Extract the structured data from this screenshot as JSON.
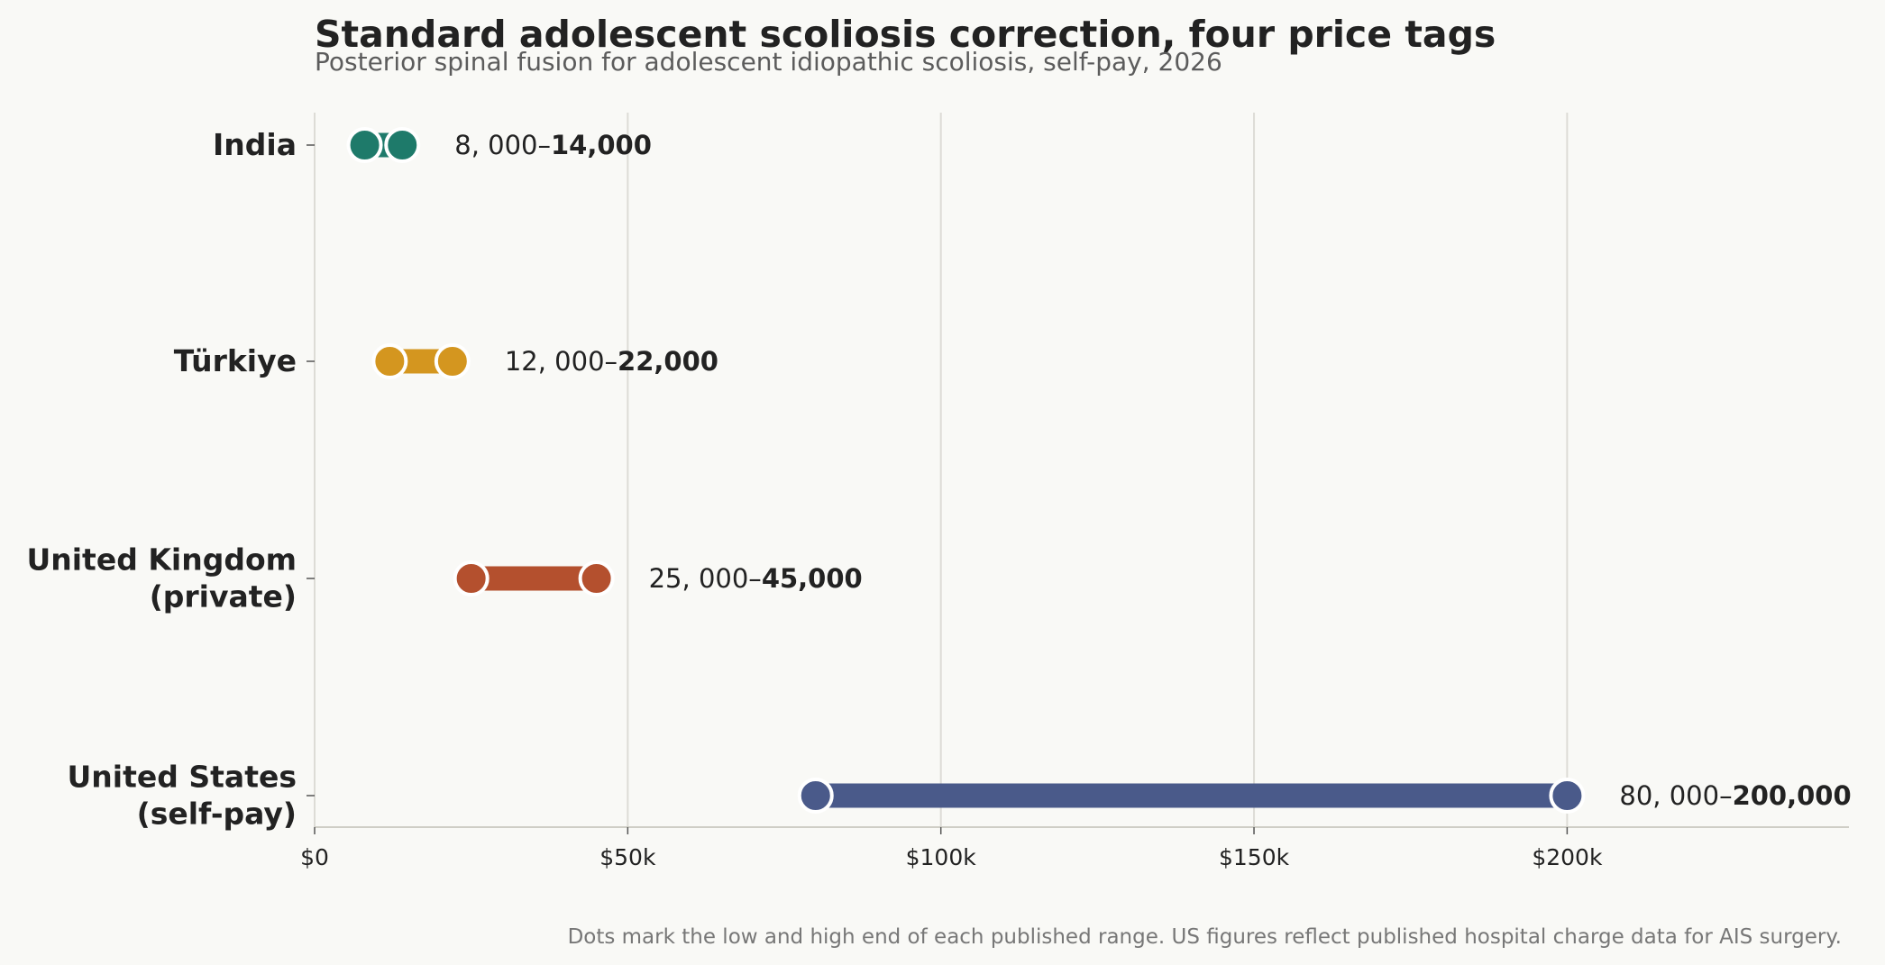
{
  "chart_data": {
    "type": "dumbbell",
    "title": "Standard adolescent scoliosis correction, four price tags",
    "subtitle": "Posterior spinal fusion for adolescent idiopathic scoliosis, self-pay, 2026",
    "footnote": "Dots mark the low and high end of each published range. US figures reflect published hospital charge data for AIS surgery.",
    "xlim": [
      0,
      245000
    ],
    "x_ticks": [
      0,
      50000,
      100000,
      150000,
      200000
    ],
    "x_tick_labels": [
      "$0",
      "$50k",
      "$100k",
      "$150k",
      "$200k"
    ],
    "grid": "vertical",
    "categories": [
      {
        "label": [
          "India"
        ],
        "low": 8000,
        "high": 14000,
        "color": "#1e7a6a",
        "range_text_low": "8, 000–",
        "range_text_high": "14,000"
      },
      {
        "label": [
          "Türkiye"
        ],
        "low": 12000,
        "high": 22000,
        "color": "#d4961f",
        "range_text_low": "12, 000–",
        "range_text_high": "22,000"
      },
      {
        "label": [
          "United Kingdom",
          "(private)"
        ],
        "low": 25000,
        "high": 45000,
        "color": "#b4502e",
        "range_text_low": "25, 000–",
        "range_text_high": "45,000"
      },
      {
        "label": [
          "United States",
          "(self-pay)"
        ],
        "low": 80000,
        "high": 200000,
        "color": "#4a5a8a",
        "range_text_low": "80, 000–",
        "range_text_high": "200,000"
      }
    ]
  }
}
